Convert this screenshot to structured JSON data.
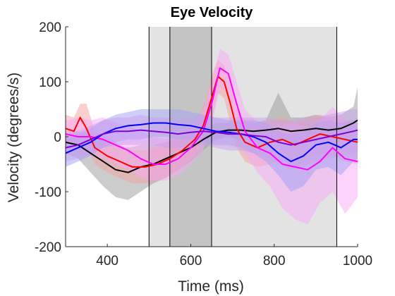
{
  "chart_data": {
    "type": "line",
    "title": "Eye Velocity",
    "xlabel": "Time (ms)",
    "ylabel": "Velocity (degrees/s)",
    "xlim": [
      300,
      1000
    ],
    "ylim": [
      -200,
      200
    ],
    "xticks": [
      400,
      600,
      800,
      1000
    ],
    "yticks": [
      -200,
      -100,
      0,
      100,
      200
    ],
    "grid": false,
    "legend": "none",
    "shaded_regions": [
      {
        "x0": 500,
        "x1": 950,
        "color": "#e3e3e3"
      },
      {
        "x0": 550,
        "x1": 650,
        "color": "#c4c4c4"
      }
    ],
    "vertical_lines": [
      500,
      550,
      650,
      950
    ],
    "series": [
      {
        "color": "#000000",
        "band_color": "#9a9a9a",
        "x": [
          300,
          330,
          360,
          390,
          420,
          450,
          480,
          510,
          540,
          570,
          600,
          630,
          660,
          690,
          720,
          750,
          780,
          810,
          840,
          870,
          900,
          930,
          960,
          990,
          1000
        ],
        "y": [
          -10,
          -15,
          -30,
          -45,
          -60,
          -65,
          -55,
          -50,
          -40,
          -30,
          -20,
          -5,
          8,
          12,
          12,
          10,
          12,
          15,
          10,
          12,
          15,
          12,
          15,
          25,
          30
        ],
        "lower": [
          -30,
          -40,
          -65,
          -90,
          -110,
          -115,
          -100,
          -85,
          -75,
          -60,
          -45,
          -25,
          -5,
          0,
          -5,
          -5,
          -10,
          -10,
          -15,
          -10,
          -10,
          -15,
          -10,
          -5,
          0
        ],
        "upper": [
          10,
          10,
          5,
          -5,
          -15,
          -20,
          -15,
          -15,
          -10,
          -5,
          5,
          15,
          25,
          25,
          30,
          25,
          30,
          80,
          35,
          35,
          40,
          35,
          40,
          55,
          90
        ]
      },
      {
        "color": "#ff0000",
        "band_color": "#f5a0a0",
        "x": [
          300,
          320,
          335,
          350,
          370,
          400,
          430,
          460,
          490,
          520,
          550,
          580,
          610,
          630,
          650,
          665,
          680,
          695,
          710,
          730,
          760,
          790,
          820,
          850,
          880,
          910,
          940,
          970,
          1000
        ],
        "y": [
          15,
          10,
          35,
          15,
          -20,
          -35,
          -45,
          -55,
          -55,
          -50,
          -40,
          -25,
          -5,
          20,
          70,
          110,
          100,
          60,
          15,
          -10,
          -20,
          -10,
          -5,
          -15,
          -5,
          5,
          0,
          -5,
          -10
        ],
        "lower": [
          -10,
          -15,
          10,
          -15,
          -50,
          -65,
          -75,
          -85,
          -85,
          -80,
          -70,
          -55,
          -35,
          -10,
          30,
          80,
          70,
          25,
          -20,
          -45,
          -55,
          -50,
          -40,
          -55,
          -40,
          -30,
          -35,
          -45,
          -50
        ],
        "upper": [
          40,
          35,
          60,
          60,
          10,
          0,
          -15,
          -25,
          -25,
          -20,
          -10,
          5,
          25,
          55,
          110,
          140,
          130,
          95,
          50,
          30,
          20,
          30,
          35,
          25,
          35,
          40,
          35,
          30,
          25
        ]
      },
      {
        "color": "#ff00ff",
        "band_color": "#f7a8f7",
        "x": [
          300,
          330,
          360,
          390,
          420,
          450,
          480,
          510,
          540,
          570,
          600,
          630,
          650,
          670,
          690,
          710,
          730,
          760,
          790,
          820,
          850,
          880,
          910,
          940,
          970,
          1000
        ],
        "y": [
          5,
          0,
          0,
          -5,
          -15,
          -25,
          -40,
          -50,
          -50,
          -40,
          -20,
          10,
          60,
          125,
          115,
          60,
          10,
          -20,
          -30,
          -50,
          -55,
          -60,
          -45,
          -20,
          -40,
          -45
        ],
        "lower": [
          -20,
          -30,
          -35,
          -40,
          -50,
          -60,
          -75,
          -80,
          -80,
          -70,
          -50,
          -25,
          20,
          90,
          80,
          20,
          -30,
          -65,
          -90,
          -130,
          -150,
          -160,
          -120,
          -100,
          -140,
          -110
        ],
        "upper": [
          30,
          35,
          30,
          35,
          25,
          20,
          10,
          0,
          -5,
          0,
          15,
          50,
          100,
          160,
          150,
          100,
          50,
          25,
          20,
          20,
          25,
          15,
          30,
          55,
          30,
          20
        ]
      },
      {
        "color": "#0000ff",
        "band_color": "#a0a0f5",
        "x": [
          300,
          330,
          360,
          390,
          420,
          450,
          480,
          510,
          540,
          570,
          600,
          630,
          660,
          690,
          720,
          750,
          780,
          810,
          840,
          870,
          900,
          930,
          960,
          990,
          1000
        ],
        "y": [
          -30,
          -20,
          -10,
          5,
          15,
          20,
          22,
          25,
          25,
          22,
          20,
          15,
          10,
          8,
          5,
          0,
          -10,
          -30,
          -45,
          -35,
          -15,
          -10,
          -20,
          -5,
          -5
        ],
        "lower": [
          -55,
          -45,
          -35,
          -20,
          -10,
          -5,
          -5,
          0,
          0,
          -5,
          -5,
          -10,
          -15,
          -15,
          -20,
          -30,
          -45,
          -70,
          -100,
          -90,
          -60,
          -55,
          -70,
          -45,
          -40
        ],
        "upper": [
          -5,
          5,
          15,
          30,
          40,
          45,
          50,
          50,
          50,
          50,
          45,
          40,
          35,
          30,
          30,
          30,
          25,
          10,
          5,
          10,
          25,
          30,
          25,
          30,
          35
        ]
      },
      {
        "color": "#7e00d8",
        "band_color": "#c9a0ee",
        "x": [
          300,
          330,
          360,
          390,
          420,
          450,
          480,
          510,
          540,
          570,
          600,
          630,
          660,
          690,
          720,
          750,
          780,
          810,
          840,
          870,
          900,
          930,
          960,
          990,
          1000
        ],
        "y": [
          -20,
          -15,
          -5,
          5,
          10,
          10,
          12,
          10,
          8,
          5,
          8,
          10,
          8,
          5,
          5,
          2,
          0,
          -10,
          -15,
          -10,
          -5,
          0,
          5,
          10,
          12
        ],
        "lower": [
          -45,
          -40,
          -30,
          -20,
          -15,
          -15,
          -15,
          -15,
          -20,
          -20,
          -20,
          -15,
          -20,
          -25,
          -25,
          -30,
          -35,
          -50,
          -60,
          -55,
          -45,
          -40,
          -35,
          -30,
          -25
        ],
        "upper": [
          5,
          10,
          20,
          30,
          35,
          35,
          40,
          35,
          35,
          30,
          35,
          35,
          35,
          35,
          35,
          35,
          35,
          30,
          30,
          35,
          35,
          40,
          45,
          50,
          50
        ]
      }
    ]
  }
}
